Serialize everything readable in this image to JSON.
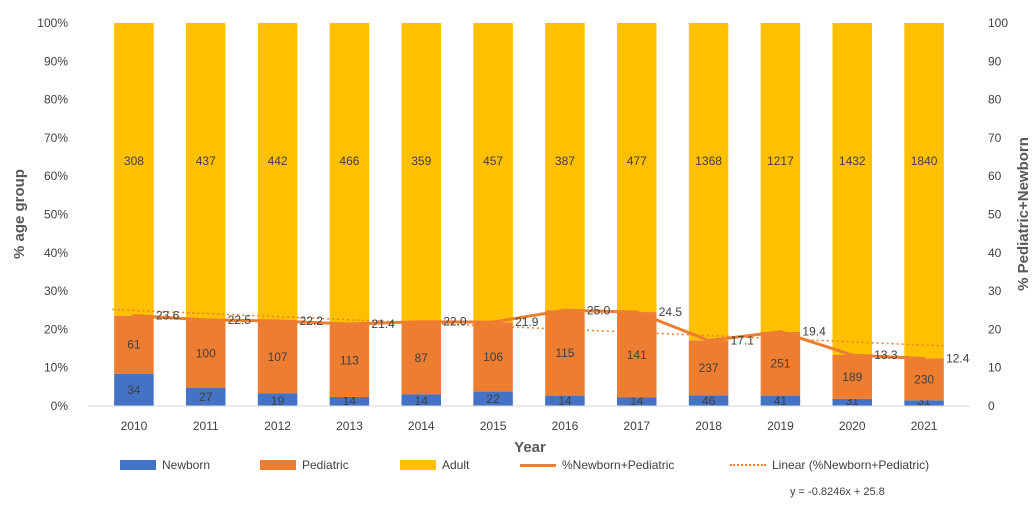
{
  "chart_data": {
    "type": "bar",
    "stacked": "percent",
    "categories": [
      "2010",
      "2011",
      "2012",
      "2013",
      "2014",
      "2015",
      "2016",
      "2017",
      "2018",
      "2019",
      "2020",
      "2021"
    ],
    "series": [
      {
        "name": "Newborn",
        "color": "#4472C4",
        "values": [
          34,
          27,
          19,
          14,
          14,
          22,
          14,
          14,
          46,
          41,
          31,
          31
        ]
      },
      {
        "name": "Pediatric",
        "color": "#ED7D31",
        "values": [
          61,
          100,
          107,
          113,
          87,
          106,
          115,
          141,
          237,
          251,
          189,
          230
        ]
      },
      {
        "name": "Adult",
        "color": "#FFC000",
        "values": [
          308,
          437,
          442,
          466,
          359,
          457,
          387,
          477,
          1368,
          1217,
          1432,
          1840
        ]
      }
    ],
    "line_series": {
      "name": "%Newborn+Pediatric",
      "color": "#ED7D31",
      "axis": "secondary",
      "values": [
        23.6,
        22.5,
        22.2,
        21.4,
        22.0,
        21.9,
        25.0,
        24.5,
        17.1,
        19.4,
        13.3,
        12.4
      ],
      "labels": [
        "23.6",
        "22.5",
        "22.2",
        "21.4",
        "22.0",
        "21.9",
        "25.0",
        "24.5",
        "17.1",
        "19.4",
        "13.3",
        "12.4"
      ]
    },
    "trendline": {
      "name": "Linear (%Newborn+Pediatric)",
      "slope": -0.8246,
      "intercept": 25.8,
      "equation": "y = -0.8246x + 25.8"
    },
    "xlabel": "Year",
    "ylabel": "% age group",
    "y2label": "% Pediatric+Newborn",
    "ylim": [
      0,
      100
    ],
    "y2lim": [
      0,
      100
    ],
    "yticks": [
      "0%",
      "10%",
      "20%",
      "30%",
      "40%",
      "50%",
      "60%",
      "70%",
      "80%",
      "90%",
      "100%"
    ],
    "y2ticks": [
      "0",
      "10",
      "20",
      "30",
      "40",
      "50",
      "60",
      "70",
      "80",
      "90",
      "100"
    ],
    "legend_position": "bottom",
    "grid": false
  }
}
